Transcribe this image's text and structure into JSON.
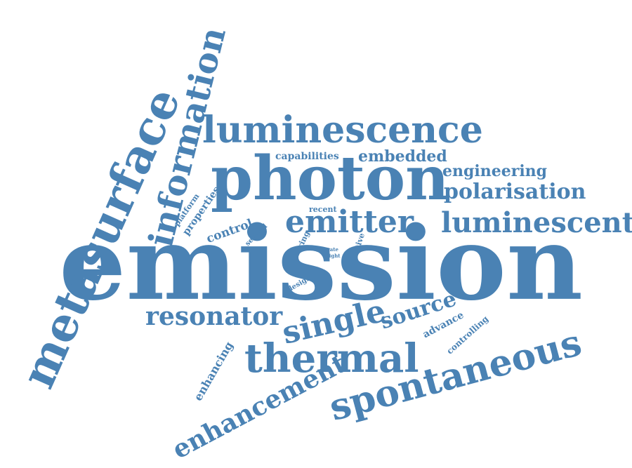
{
  "color": "#4a82b4",
  "words": {
    "emission": "emission",
    "metasurface": "metasurface",
    "information": "information",
    "luminescence": "luminescence",
    "photon": "photon",
    "capabilities": "capabilities",
    "embedded": "embedded",
    "engineering": "engineering",
    "polarisation": "polarisation",
    "recent": "recent",
    "emitter": "emitter",
    "luminescent": "luminescent",
    "platform": "platform",
    "properties": "properties",
    "control": "control",
    "several": "several",
    "offering": "offering",
    "rate": "rate",
    "light": "light",
    "selective": "selective",
    "design": "design",
    "resonator": "resonator",
    "single": "single",
    "source": "source",
    "advance": "advance",
    "controlling": "controlling",
    "thermal": "thermal",
    "enhancing": "enhancing",
    "spontaneous": "spontaneous",
    "enhancement": "enhancement"
  }
}
